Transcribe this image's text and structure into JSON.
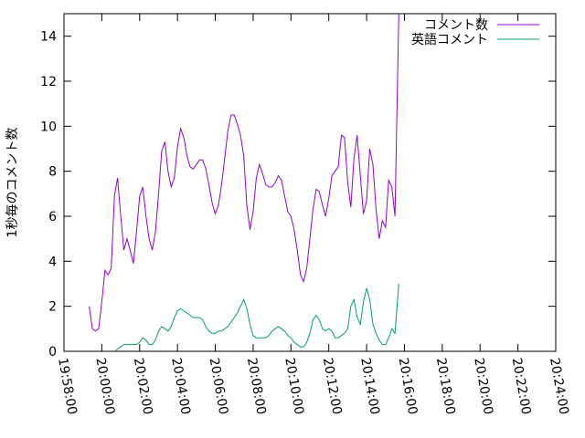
{
  "chart_data": {
    "type": "line",
    "title": "",
    "xlabel": "",
    "ylabel": "1秒毎のコメント数",
    "xlim": [
      "19:58:00",
      "20:24:00"
    ],
    "ylim": [
      0,
      15
    ],
    "grid": false,
    "legend_position": "top-right",
    "x_ticks": [
      "19:58:00",
      "20:00:00",
      "20:02:00",
      "20:04:00",
      "20:06:00",
      "20:08:00",
      "20:10:00",
      "20:12:00",
      "20:14:00",
      "20:16:00",
      "20:18:00",
      "20:20:00",
      "20:22:00",
      "20:24:00"
    ],
    "y_ticks": [
      0,
      2,
      4,
      6,
      8,
      10,
      12,
      14
    ],
    "series": [
      {
        "name": "コメント数",
        "color": "#9400d3",
        "points": [
          [
            "19:59:20",
            2.0
          ],
          [
            "19:59:30",
            1.0
          ],
          [
            "19:59:40",
            0.9
          ],
          [
            "19:59:50",
            1.0
          ],
          [
            "20:00:00",
            2.2
          ],
          [
            "20:00:10",
            3.6
          ],
          [
            "20:00:20",
            3.4
          ],
          [
            "20:00:30",
            3.7
          ],
          [
            "20:00:40",
            6.9
          ],
          [
            "20:00:50",
            7.7
          ],
          [
            "20:01:00",
            6.0
          ],
          [
            "20:01:10",
            4.5
          ],
          [
            "20:01:20",
            5.0
          ],
          [
            "20:01:30",
            4.5
          ],
          [
            "20:01:40",
            3.9
          ],
          [
            "20:01:50",
            5.3
          ],
          [
            "20:02:00",
            6.9
          ],
          [
            "20:02:10",
            7.3
          ],
          [
            "20:02:20",
            6.0
          ],
          [
            "20:02:30",
            5.0
          ],
          [
            "20:02:40",
            4.5
          ],
          [
            "20:02:50",
            5.3
          ],
          [
            "20:03:00",
            7.0
          ],
          [
            "20:03:10",
            8.9
          ],
          [
            "20:03:20",
            9.3
          ],
          [
            "20:03:30",
            8.0
          ],
          [
            "20:03:40",
            7.3
          ],
          [
            "20:03:50",
            7.7
          ],
          [
            "20:04:00",
            9.1
          ],
          [
            "20:04:10",
            9.9
          ],
          [
            "20:04:20",
            9.5
          ],
          [
            "20:04:30",
            8.7
          ],
          [
            "20:04:40",
            8.2
          ],
          [
            "20:04:50",
            8.1
          ],
          [
            "20:05:00",
            8.3
          ],
          [
            "20:05:10",
            8.5
          ],
          [
            "20:05:20",
            8.5
          ],
          [
            "20:05:30",
            8.1
          ],
          [
            "20:05:40",
            7.4
          ],
          [
            "20:05:50",
            6.6
          ],
          [
            "20:06:00",
            6.1
          ],
          [
            "20:06:10",
            6.5
          ],
          [
            "20:06:20",
            7.4
          ],
          [
            "20:06:30",
            8.6
          ],
          [
            "20:06:40",
            9.8
          ],
          [
            "20:06:50",
            10.5
          ],
          [
            "20:07:00",
            10.5
          ],
          [
            "20:07:10",
            10.1
          ],
          [
            "20:07:20",
            9.6
          ],
          [
            "20:07:30",
            8.7
          ],
          [
            "20:07:40",
            6.5
          ],
          [
            "20:07:50",
            5.4
          ],
          [
            "20:08:00",
            6.2
          ],
          [
            "20:08:10",
            7.7
          ],
          [
            "20:08:20",
            8.3
          ],
          [
            "20:08:30",
            7.9
          ],
          [
            "20:08:40",
            7.4
          ],
          [
            "20:08:50",
            7.3
          ],
          [
            "20:09:00",
            7.3
          ],
          [
            "20:09:10",
            7.5
          ],
          [
            "20:09:20",
            7.8
          ],
          [
            "20:09:30",
            7.6
          ],
          [
            "20:09:40",
            6.9
          ],
          [
            "20:09:50",
            6.2
          ],
          [
            "20:10:00",
            6.0
          ],
          [
            "20:10:10",
            5.4
          ],
          [
            "20:10:20",
            4.5
          ],
          [
            "20:10:30",
            3.4
          ],
          [
            "20:10:40",
            3.1
          ],
          [
            "20:10:50",
            3.7
          ],
          [
            "20:11:00",
            5.0
          ],
          [
            "20:11:10",
            6.3
          ],
          [
            "20:11:20",
            7.2
          ],
          [
            "20:11:30",
            7.1
          ],
          [
            "20:11:40",
            6.5
          ],
          [
            "20:11:50",
            6.0
          ],
          [
            "20:12:00",
            6.8
          ],
          [
            "20:12:10",
            7.8
          ],
          [
            "20:12:20",
            8.0
          ],
          [
            "20:12:30",
            8.2
          ],
          [
            "20:12:40",
            9.6
          ],
          [
            "20:12:50",
            9.5
          ],
          [
            "20:13:00",
            7.5
          ],
          [
            "20:13:10",
            6.4
          ],
          [
            "20:13:20",
            8.6
          ],
          [
            "20:13:30",
            9.6
          ],
          [
            "20:13:40",
            7.8
          ],
          [
            "20:13:50",
            6.1
          ],
          [
            "20:14:00",
            6.7
          ],
          [
            "20:14:10",
            9.0
          ],
          [
            "20:14:20",
            8.3
          ],
          [
            "20:14:30",
            6.3
          ],
          [
            "20:14:40",
            5.0
          ],
          [
            "20:14:50",
            5.8
          ],
          [
            "20:15:00",
            5.5
          ],
          [
            "20:15:10",
            7.6
          ],
          [
            "20:15:20",
            7.3
          ],
          [
            "20:15:30",
            6.0
          ],
          [
            "20:15:36",
            10.5
          ],
          [
            "20:15:42",
            15.0
          ]
        ]
      },
      {
        "name": "英語コメント",
        "color": "#009e73",
        "points": [
          [
            "20:00:40",
            0.0
          ],
          [
            "20:00:50",
            0.1
          ],
          [
            "20:01:00",
            0.2
          ],
          [
            "20:01:10",
            0.3
          ],
          [
            "20:01:20",
            0.3
          ],
          [
            "20:01:30",
            0.3
          ],
          [
            "20:01:40",
            0.3
          ],
          [
            "20:01:50",
            0.3
          ],
          [
            "20:02:00",
            0.4
          ],
          [
            "20:02:10",
            0.6
          ],
          [
            "20:02:20",
            0.5
          ],
          [
            "20:02:30",
            0.3
          ],
          [
            "20:02:40",
            0.3
          ],
          [
            "20:02:50",
            0.5
          ],
          [
            "20:03:00",
            0.9
          ],
          [
            "20:03:10",
            1.1
          ],
          [
            "20:03:20",
            1.0
          ],
          [
            "20:03:30",
            0.9
          ],
          [
            "20:03:40",
            1.1
          ],
          [
            "20:03:50",
            1.5
          ],
          [
            "20:04:00",
            1.8
          ],
          [
            "20:04:10",
            1.9
          ],
          [
            "20:04:20",
            1.8
          ],
          [
            "20:04:30",
            1.7
          ],
          [
            "20:04:40",
            1.6
          ],
          [
            "20:04:50",
            1.5
          ],
          [
            "20:05:00",
            1.5
          ],
          [
            "20:05:10",
            1.5
          ],
          [
            "20:05:20",
            1.4
          ],
          [
            "20:05:30",
            1.1
          ],
          [
            "20:05:40",
            0.9
          ],
          [
            "20:05:50",
            0.8
          ],
          [
            "20:06:00",
            0.8
          ],
          [
            "20:06:10",
            0.9
          ],
          [
            "20:06:20",
            0.9
          ],
          [
            "20:06:30",
            1.0
          ],
          [
            "20:06:40",
            1.1
          ],
          [
            "20:06:50",
            1.3
          ],
          [
            "20:07:00",
            1.5
          ],
          [
            "20:07:10",
            1.7
          ],
          [
            "20:07:20",
            2.0
          ],
          [
            "20:07:30",
            2.3
          ],
          [
            "20:07:40",
            1.9
          ],
          [
            "20:07:50",
            1.2
          ],
          [
            "20:08:00",
            0.7
          ],
          [
            "20:08:10",
            0.6
          ],
          [
            "20:08:20",
            0.6
          ],
          [
            "20:08:30",
            0.6
          ],
          [
            "20:08:40",
            0.6
          ],
          [
            "20:08:50",
            0.7
          ],
          [
            "20:09:00",
            0.9
          ],
          [
            "20:09:10",
            1.0
          ],
          [
            "20:09:20",
            1.1
          ],
          [
            "20:09:30",
            1.0
          ],
          [
            "20:09:40",
            0.9
          ],
          [
            "20:09:50",
            0.7
          ],
          [
            "20:10:00",
            0.6
          ],
          [
            "20:10:10",
            0.4
          ],
          [
            "20:10:20",
            0.3
          ],
          [
            "20:10:30",
            0.2
          ],
          [
            "20:10:40",
            0.2
          ],
          [
            "20:10:50",
            0.4
          ],
          [
            "20:11:00",
            0.8
          ],
          [
            "20:11:10",
            1.4
          ],
          [
            "20:11:20",
            1.6
          ],
          [
            "20:11:30",
            1.4
          ],
          [
            "20:11:40",
            1.0
          ],
          [
            "20:11:50",
            0.9
          ],
          [
            "20:12:00",
            1.0
          ],
          [
            "20:12:10",
            0.9
          ],
          [
            "20:12:20",
            0.6
          ],
          [
            "20:12:30",
            0.6
          ],
          [
            "20:12:40",
            0.7
          ],
          [
            "20:12:50",
            0.8
          ],
          [
            "20:13:00",
            1.0
          ],
          [
            "20:13:10",
            2.0
          ],
          [
            "20:13:20",
            2.3
          ],
          [
            "20:13:30",
            1.5
          ],
          [
            "20:13:40",
            1.2
          ],
          [
            "20:13:50",
            2.2
          ],
          [
            "20:14:00",
            2.8
          ],
          [
            "20:14:10",
            2.3
          ],
          [
            "20:14:20",
            1.2
          ],
          [
            "20:14:30",
            0.8
          ],
          [
            "20:14:40",
            0.5
          ],
          [
            "20:14:50",
            0.3
          ],
          [
            "20:15:00",
            0.3
          ],
          [
            "20:15:10",
            0.6
          ],
          [
            "20:15:20",
            1.0
          ],
          [
            "20:15:30",
            0.8
          ],
          [
            "20:15:42",
            3.0
          ]
        ]
      }
    ]
  }
}
